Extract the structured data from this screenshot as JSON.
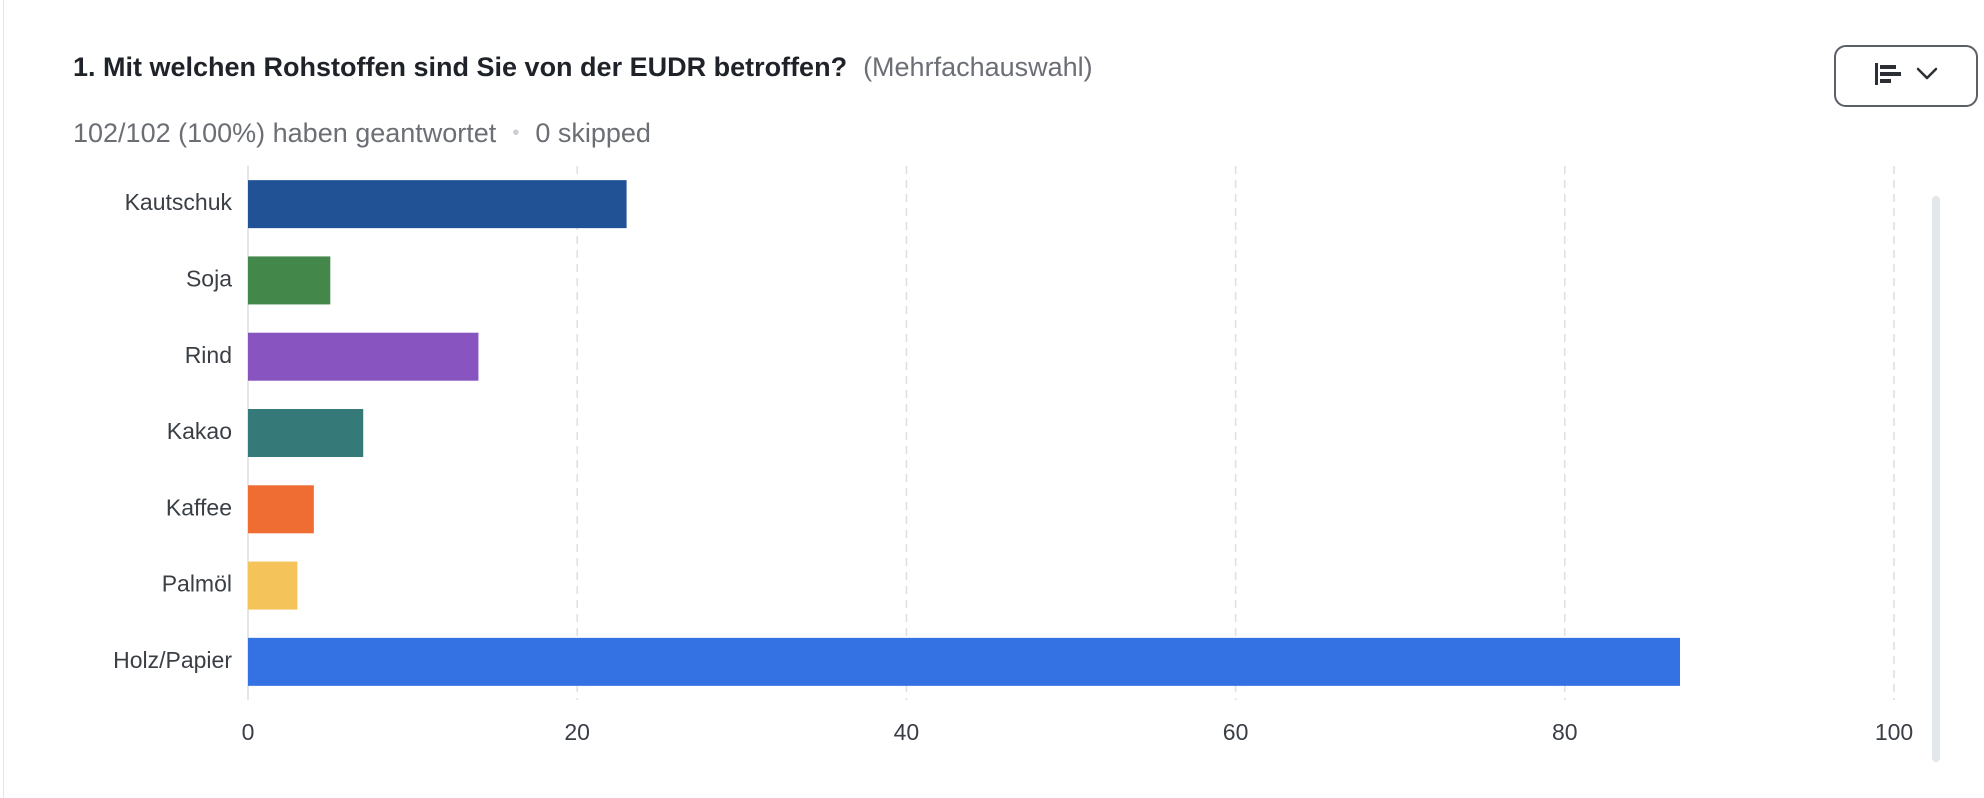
{
  "question": {
    "title": "1. Mit welchen Rohstoffen sind Sie von der EUDR betroffen?",
    "type_hint": "(Mehrfachauswahl)",
    "answered": "102/102 (100%) haben geantwortet",
    "skipped": "0 skipped"
  },
  "toolbar": {
    "chart_type_icon": "horizontal-bar-chart-icon",
    "dropdown_icon": "chevron-down-icon"
  },
  "chart_data": {
    "type": "bar",
    "orientation": "horizontal",
    "categories": [
      "Kautschuk",
      "Soja",
      "Rind",
      "Kakao",
      "Kaffee",
      "Palmöl",
      "Holz/Papier"
    ],
    "values": [
      23,
      5,
      14,
      7,
      4,
      3,
      87
    ],
    "colors": [
      "#215295",
      "#43874a",
      "#8855c0",
      "#357a78",
      "#ef6c33",
      "#f4c35a",
      "#3472e3"
    ],
    "xlim": [
      0,
      100
    ],
    "xticks": [
      0,
      20,
      40,
      60,
      80,
      100
    ],
    "grid": true,
    "legend": "none"
  }
}
